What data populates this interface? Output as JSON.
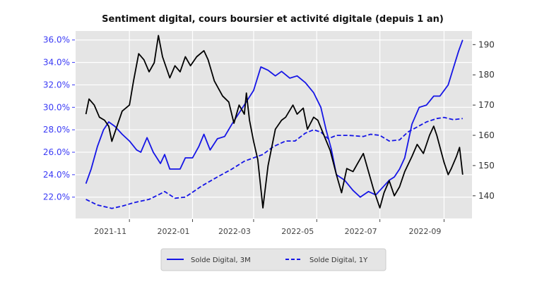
{
  "chart_data": {
    "type": "line",
    "title": "Sentiment digital, cours boursier et activité digitale (depuis 1 an)",
    "xlabel": "",
    "ylabel_left": "",
    "ylabel_right": "",
    "x_ticks": [
      "2021-11",
      "2022-01",
      "2022-03",
      "2022-05",
      "2022-07",
      "2022-09"
    ],
    "x_tick_dates": [
      "2021-11-01",
      "2022-01-01",
      "2022-03-01",
      "2022-05-01",
      "2022-07-01",
      "2022-09-01"
    ],
    "xlim": [
      "2021-09-10",
      "2022-09-28"
    ],
    "y_left": {
      "ticks": [
        "22.0%",
        "24.0%",
        "26.0%",
        "28.0%",
        "30.0%",
        "32.0%",
        "34.0%",
        "36.0%"
      ],
      "tick_values": [
        22,
        24,
        26,
        28,
        30,
        32,
        34,
        36
      ],
      "lim": [
        20.1,
        36.8
      ],
      "color": "#3a3af5"
    },
    "y_right": {
      "ticks": [
        "140",
        "150",
        "160",
        "170",
        "180",
        "190"
      ],
      "tick_values": [
        140,
        150,
        160,
        170,
        180,
        190
      ],
      "lim": [
        132.5,
        194.5
      ]
    },
    "grid": true,
    "background": "#e5e5e5",
    "legend_position": "bottom-center",
    "series": [
      {
        "name": "Solde Digital, 3M",
        "axis": "left",
        "color": "#1515e6",
        "style": "solid",
        "points": [
          [
            "2021-09-20",
            23.2
          ],
          [
            "2021-09-25",
            24.5
          ],
          [
            "2021-10-01",
            26.5
          ],
          [
            "2021-10-07",
            28.0
          ],
          [
            "2021-10-12",
            28.7
          ],
          [
            "2021-10-18",
            28.3
          ],
          [
            "2021-10-25",
            27.6
          ],
          [
            "2021-11-01",
            27.0
          ],
          [
            "2021-11-08",
            26.2
          ],
          [
            "2021-11-12",
            26.0
          ],
          [
            "2021-11-18",
            27.3
          ],
          [
            "2021-11-24",
            26.0
          ],
          [
            "2021-12-01",
            25.0
          ],
          [
            "2021-12-05",
            25.8
          ],
          [
            "2021-12-10",
            24.5
          ],
          [
            "2021-12-20",
            24.5
          ],
          [
            "2021-12-25",
            25.5
          ],
          [
            "2022-01-01",
            25.5
          ],
          [
            "2022-01-07",
            26.5
          ],
          [
            "2022-01-12",
            27.6
          ],
          [
            "2022-01-18",
            26.2
          ],
          [
            "2022-01-25",
            27.2
          ],
          [
            "2022-02-01",
            27.4
          ],
          [
            "2022-02-08",
            28.5
          ],
          [
            "2022-02-15",
            29.5
          ],
          [
            "2022-02-22",
            30.5
          ],
          [
            "2022-03-01",
            31.5
          ],
          [
            "2022-03-08",
            33.6
          ],
          [
            "2022-03-15",
            33.3
          ],
          [
            "2022-03-22",
            32.8
          ],
          [
            "2022-03-28",
            33.2
          ],
          [
            "2022-04-05",
            32.6
          ],
          [
            "2022-04-12",
            32.8
          ],
          [
            "2022-04-20",
            32.2
          ],
          [
            "2022-04-28",
            31.3
          ],
          [
            "2022-05-05",
            30.0
          ],
          [
            "2022-05-10",
            28.0
          ],
          [
            "2022-05-15",
            26.3
          ],
          [
            "2022-05-20",
            24.0
          ],
          [
            "2022-05-28",
            23.5
          ],
          [
            "2022-06-05",
            22.6
          ],
          [
            "2022-06-12",
            22.0
          ],
          [
            "2022-06-20",
            22.5
          ],
          [
            "2022-06-27",
            22.2
          ],
          [
            "2022-07-05",
            23.0
          ],
          [
            "2022-07-10",
            23.5
          ],
          [
            "2022-07-15",
            23.8
          ],
          [
            "2022-07-20",
            24.5
          ],
          [
            "2022-07-25",
            25.5
          ],
          [
            "2022-08-01",
            28.5
          ],
          [
            "2022-08-08",
            30.0
          ],
          [
            "2022-08-15",
            30.2
          ],
          [
            "2022-08-22",
            31.0
          ],
          [
            "2022-08-28",
            31.0
          ],
          [
            "2022-09-05",
            32.0
          ],
          [
            "2022-09-10",
            33.5
          ],
          [
            "2022-09-15",
            35.0
          ],
          [
            "2022-09-19",
            36.0
          ]
        ]
      },
      {
        "name": "Solde Digital, 1Y",
        "axis": "left",
        "color": "#1515e6",
        "style": "dashed",
        "points": [
          [
            "2021-09-20",
            21.8
          ],
          [
            "2021-10-01",
            21.3
          ],
          [
            "2021-10-15",
            21.0
          ],
          [
            "2021-10-25",
            21.2
          ],
          [
            "2021-11-05",
            21.5
          ],
          [
            "2021-11-20",
            21.8
          ],
          [
            "2021-12-01",
            22.3
          ],
          [
            "2021-12-05",
            22.5
          ],
          [
            "2021-12-15",
            21.9
          ],
          [
            "2021-12-25",
            22.0
          ],
          [
            "2022-01-10",
            23.0
          ],
          [
            "2022-01-25",
            23.8
          ],
          [
            "2022-02-08",
            24.5
          ],
          [
            "2022-02-20",
            25.2
          ],
          [
            "2022-03-01",
            25.5
          ],
          [
            "2022-03-10",
            25.8
          ],
          [
            "2022-03-20",
            26.5
          ],
          [
            "2022-04-01",
            27.0
          ],
          [
            "2022-04-10",
            27.0
          ],
          [
            "2022-04-20",
            27.7
          ],
          [
            "2022-04-28",
            28.0
          ],
          [
            "2022-05-05",
            27.8
          ],
          [
            "2022-05-12",
            27.2
          ],
          [
            "2022-05-20",
            27.5
          ],
          [
            "2022-06-01",
            27.5
          ],
          [
            "2022-06-15",
            27.4
          ],
          [
            "2022-06-22",
            27.6
          ],
          [
            "2022-07-01",
            27.5
          ],
          [
            "2022-07-10",
            27.0
          ],
          [
            "2022-07-20",
            27.1
          ],
          [
            "2022-07-28",
            27.8
          ],
          [
            "2022-08-05",
            28.2
          ],
          [
            "2022-08-15",
            28.7
          ],
          [
            "2022-08-25",
            29.0
          ],
          [
            "2022-09-01",
            29.1
          ],
          [
            "2022-09-10",
            28.9
          ],
          [
            "2022-09-19",
            29.0
          ]
        ]
      },
      {
        "axis": "right",
        "color": "#000000",
        "style": "solid",
        "points": [
          [
            "2021-09-20",
            167
          ],
          [
            "2021-09-23",
            172
          ],
          [
            "2021-09-28",
            170
          ],
          [
            "2021-10-03",
            166
          ],
          [
            "2021-10-08",
            165
          ],
          [
            "2021-10-12",
            163
          ],
          [
            "2021-10-15",
            158
          ],
          [
            "2021-10-20",
            163
          ],
          [
            "2021-10-25",
            168
          ],
          [
            "2021-11-01",
            170
          ],
          [
            "2021-11-05",
            178
          ],
          [
            "2021-11-10",
            187
          ],
          [
            "2021-11-15",
            185
          ],
          [
            "2021-11-20",
            181
          ],
          [
            "2021-11-25",
            184
          ],
          [
            "2021-11-29",
            193
          ],
          [
            "2021-12-03",
            186
          ],
          [
            "2021-12-10",
            179
          ],
          [
            "2021-12-15",
            183
          ],
          [
            "2021-12-20",
            181
          ],
          [
            "2021-12-25",
            186
          ],
          [
            "2021-12-30",
            183
          ],
          [
            "2022-01-05",
            186
          ],
          [
            "2022-01-12",
            188
          ],
          [
            "2022-01-16",
            185
          ],
          [
            "2022-01-22",
            178
          ],
          [
            "2022-01-30",
            173
          ],
          [
            "2022-02-05",
            171
          ],
          [
            "2022-02-10",
            164
          ],
          [
            "2022-02-15",
            170
          ],
          [
            "2022-02-20",
            167
          ],
          [
            "2022-02-22",
            174
          ],
          [
            "2022-02-25",
            165
          ],
          [
            "2022-03-01",
            158
          ],
          [
            "2022-03-05",
            152
          ],
          [
            "2022-03-10",
            136
          ],
          [
            "2022-03-15",
            150
          ],
          [
            "2022-03-22",
            162
          ],
          [
            "2022-03-28",
            165
          ],
          [
            "2022-04-01",
            166
          ],
          [
            "2022-04-08",
            170
          ],
          [
            "2022-04-12",
            167
          ],
          [
            "2022-04-18",
            169
          ],
          [
            "2022-04-22",
            162
          ],
          [
            "2022-04-28",
            166
          ],
          [
            "2022-05-02",
            165
          ],
          [
            "2022-05-08",
            160
          ],
          [
            "2022-05-14",
            155
          ],
          [
            "2022-05-20",
            147
          ],
          [
            "2022-05-25",
            141
          ],
          [
            "2022-05-30",
            149
          ],
          [
            "2022-06-05",
            148
          ],
          [
            "2022-06-10",
            151
          ],
          [
            "2022-06-15",
            154
          ],
          [
            "2022-06-20",
            148
          ],
          [
            "2022-06-25",
            142
          ],
          [
            "2022-07-01",
            136
          ],
          [
            "2022-07-05",
            141
          ],
          [
            "2022-07-10",
            145
          ],
          [
            "2022-07-15",
            140
          ],
          [
            "2022-07-20",
            143
          ],
          [
            "2022-07-25",
            148
          ],
          [
            "2022-08-01",
            153
          ],
          [
            "2022-08-06",
            157
          ],
          [
            "2022-08-12",
            154
          ],
          [
            "2022-08-18",
            160
          ],
          [
            "2022-08-22",
            163
          ],
          [
            "2022-08-25",
            160
          ],
          [
            "2022-09-01",
            151
          ],
          [
            "2022-09-05",
            147
          ],
          [
            "2022-09-08",
            149
          ],
          [
            "2022-09-13",
            153
          ],
          [
            "2022-09-16",
            156
          ],
          [
            "2022-09-19",
            147
          ]
        ]
      }
    ]
  }
}
